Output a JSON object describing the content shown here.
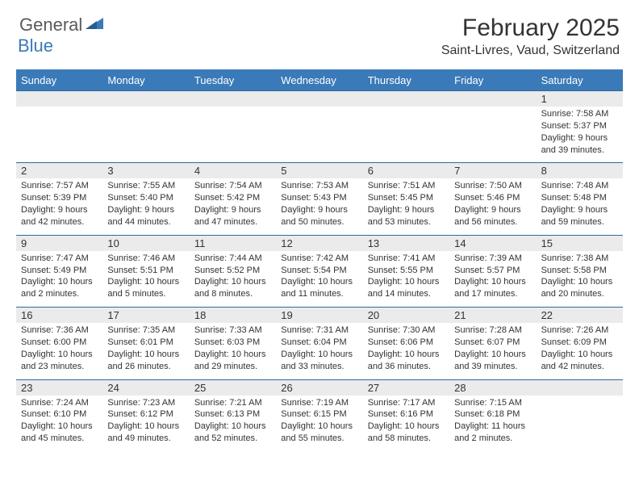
{
  "logo": {
    "general": "General",
    "blue": "Blue"
  },
  "title": "February 2025",
  "location": "Saint-Livres, Vaud, Switzerland",
  "colors": {
    "header_bar": "#3a7ab8",
    "header_border": "#2f6a9e",
    "day_band": "#ebebeb",
    "text": "#333333",
    "background": "#ffffff"
  },
  "weekdays": [
    "Sunday",
    "Monday",
    "Tuesday",
    "Wednesday",
    "Thursday",
    "Friday",
    "Saturday"
  ],
  "weeks": [
    [
      {
        "day": "",
        "sunrise": "",
        "sunset": "",
        "daylight": ""
      },
      {
        "day": "",
        "sunrise": "",
        "sunset": "",
        "daylight": ""
      },
      {
        "day": "",
        "sunrise": "",
        "sunset": "",
        "daylight": ""
      },
      {
        "day": "",
        "sunrise": "",
        "sunset": "",
        "daylight": ""
      },
      {
        "day": "",
        "sunrise": "",
        "sunset": "",
        "daylight": ""
      },
      {
        "day": "",
        "sunrise": "",
        "sunset": "",
        "daylight": ""
      },
      {
        "day": "1",
        "sunrise": "Sunrise: 7:58 AM",
        "sunset": "Sunset: 5:37 PM",
        "daylight": "Daylight: 9 hours and 39 minutes."
      }
    ],
    [
      {
        "day": "2",
        "sunrise": "Sunrise: 7:57 AM",
        "sunset": "Sunset: 5:39 PM",
        "daylight": "Daylight: 9 hours and 42 minutes."
      },
      {
        "day": "3",
        "sunrise": "Sunrise: 7:55 AM",
        "sunset": "Sunset: 5:40 PM",
        "daylight": "Daylight: 9 hours and 44 minutes."
      },
      {
        "day": "4",
        "sunrise": "Sunrise: 7:54 AM",
        "sunset": "Sunset: 5:42 PM",
        "daylight": "Daylight: 9 hours and 47 minutes."
      },
      {
        "day": "5",
        "sunrise": "Sunrise: 7:53 AM",
        "sunset": "Sunset: 5:43 PM",
        "daylight": "Daylight: 9 hours and 50 minutes."
      },
      {
        "day": "6",
        "sunrise": "Sunrise: 7:51 AM",
        "sunset": "Sunset: 5:45 PM",
        "daylight": "Daylight: 9 hours and 53 minutes."
      },
      {
        "day": "7",
        "sunrise": "Sunrise: 7:50 AM",
        "sunset": "Sunset: 5:46 PM",
        "daylight": "Daylight: 9 hours and 56 minutes."
      },
      {
        "day": "8",
        "sunrise": "Sunrise: 7:48 AM",
        "sunset": "Sunset: 5:48 PM",
        "daylight": "Daylight: 9 hours and 59 minutes."
      }
    ],
    [
      {
        "day": "9",
        "sunrise": "Sunrise: 7:47 AM",
        "sunset": "Sunset: 5:49 PM",
        "daylight": "Daylight: 10 hours and 2 minutes."
      },
      {
        "day": "10",
        "sunrise": "Sunrise: 7:46 AM",
        "sunset": "Sunset: 5:51 PM",
        "daylight": "Daylight: 10 hours and 5 minutes."
      },
      {
        "day": "11",
        "sunrise": "Sunrise: 7:44 AM",
        "sunset": "Sunset: 5:52 PM",
        "daylight": "Daylight: 10 hours and 8 minutes."
      },
      {
        "day": "12",
        "sunrise": "Sunrise: 7:42 AM",
        "sunset": "Sunset: 5:54 PM",
        "daylight": "Daylight: 10 hours and 11 minutes."
      },
      {
        "day": "13",
        "sunrise": "Sunrise: 7:41 AM",
        "sunset": "Sunset: 5:55 PM",
        "daylight": "Daylight: 10 hours and 14 minutes."
      },
      {
        "day": "14",
        "sunrise": "Sunrise: 7:39 AM",
        "sunset": "Sunset: 5:57 PM",
        "daylight": "Daylight: 10 hours and 17 minutes."
      },
      {
        "day": "15",
        "sunrise": "Sunrise: 7:38 AM",
        "sunset": "Sunset: 5:58 PM",
        "daylight": "Daylight: 10 hours and 20 minutes."
      }
    ],
    [
      {
        "day": "16",
        "sunrise": "Sunrise: 7:36 AM",
        "sunset": "Sunset: 6:00 PM",
        "daylight": "Daylight: 10 hours and 23 minutes."
      },
      {
        "day": "17",
        "sunrise": "Sunrise: 7:35 AM",
        "sunset": "Sunset: 6:01 PM",
        "daylight": "Daylight: 10 hours and 26 minutes."
      },
      {
        "day": "18",
        "sunrise": "Sunrise: 7:33 AM",
        "sunset": "Sunset: 6:03 PM",
        "daylight": "Daylight: 10 hours and 29 minutes."
      },
      {
        "day": "19",
        "sunrise": "Sunrise: 7:31 AM",
        "sunset": "Sunset: 6:04 PM",
        "daylight": "Daylight: 10 hours and 33 minutes."
      },
      {
        "day": "20",
        "sunrise": "Sunrise: 7:30 AM",
        "sunset": "Sunset: 6:06 PM",
        "daylight": "Daylight: 10 hours and 36 minutes."
      },
      {
        "day": "21",
        "sunrise": "Sunrise: 7:28 AM",
        "sunset": "Sunset: 6:07 PM",
        "daylight": "Daylight: 10 hours and 39 minutes."
      },
      {
        "day": "22",
        "sunrise": "Sunrise: 7:26 AM",
        "sunset": "Sunset: 6:09 PM",
        "daylight": "Daylight: 10 hours and 42 minutes."
      }
    ],
    [
      {
        "day": "23",
        "sunrise": "Sunrise: 7:24 AM",
        "sunset": "Sunset: 6:10 PM",
        "daylight": "Daylight: 10 hours and 45 minutes."
      },
      {
        "day": "24",
        "sunrise": "Sunrise: 7:23 AM",
        "sunset": "Sunset: 6:12 PM",
        "daylight": "Daylight: 10 hours and 49 minutes."
      },
      {
        "day": "25",
        "sunrise": "Sunrise: 7:21 AM",
        "sunset": "Sunset: 6:13 PM",
        "daylight": "Daylight: 10 hours and 52 minutes."
      },
      {
        "day": "26",
        "sunrise": "Sunrise: 7:19 AM",
        "sunset": "Sunset: 6:15 PM",
        "daylight": "Daylight: 10 hours and 55 minutes."
      },
      {
        "day": "27",
        "sunrise": "Sunrise: 7:17 AM",
        "sunset": "Sunset: 6:16 PM",
        "daylight": "Daylight: 10 hours and 58 minutes."
      },
      {
        "day": "28",
        "sunrise": "Sunrise: 7:15 AM",
        "sunset": "Sunset: 6:18 PM",
        "daylight": "Daylight: 11 hours and 2 minutes."
      },
      {
        "day": "",
        "sunrise": "",
        "sunset": "",
        "daylight": ""
      }
    ]
  ]
}
